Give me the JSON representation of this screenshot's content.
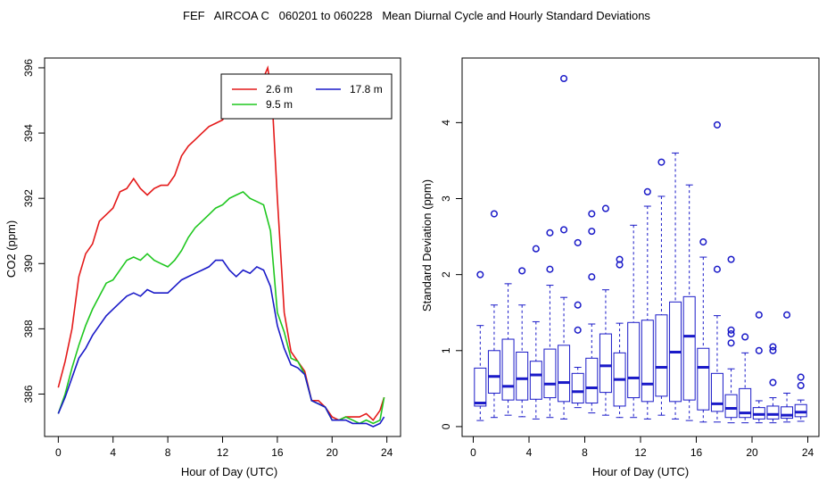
{
  "title": "FEF   AIRCOA C   060201 to 060228   Mean Diurnal Cycle and Hourly Standard Deviations",
  "chart_data": [
    {
      "type": "line",
      "xlabel": "Hour of Day (UTC)",
      "ylabel": "CO2 (ppm)",
      "xlim": [
        -1,
        25
      ],
      "ylim": [
        384.7,
        396.3
      ],
      "xticks": [
        "0",
        "4",
        "8",
        "12",
        "16",
        "20",
        "24"
      ],
      "yticks": [
        "386",
        "388",
        "390",
        "392",
        "394",
        "396"
      ],
      "legend": "top-right",
      "legend_entries": [
        "2.6 m",
        "9.5 m",
        "17.8 m"
      ],
      "series": [
        {
          "name": "2.6 m",
          "color": "#e41a1a",
          "points": [
            [
              0,
              386.2
            ],
            [
              0.5,
              387.0
            ],
            [
              1,
              388.0
            ],
            [
              1.5,
              389.6
            ],
            [
              2,
              390.3
            ],
            [
              2.5,
              390.6
            ],
            [
              3,
              391.3
            ],
            [
              3.5,
              391.5
            ],
            [
              4,
              391.7
            ],
            [
              4.5,
              392.2
            ],
            [
              5,
              392.3
            ],
            [
              5.5,
              392.6
            ],
            [
              6,
              392.3
            ],
            [
              6.5,
              392.1
            ],
            [
              7,
              392.3
            ],
            [
              7.5,
              392.4
            ],
            [
              8,
              392.4
            ],
            [
              8.5,
              392.7
            ],
            [
              9,
              393.3
            ],
            [
              9.5,
              393.6
            ],
            [
              10,
              393.8
            ],
            [
              10.5,
              394.0
            ],
            [
              11,
              394.2
            ],
            [
              11.5,
              394.3
            ],
            [
              12,
              394.4
            ],
            [
              12.5,
              394.8
            ],
            [
              13,
              395.3
            ],
            [
              13.5,
              395.3
            ],
            [
              14,
              395.5
            ],
            [
              14.5,
              395.6
            ],
            [
              15,
              395.7
            ],
            [
              15.3,
              396.0
            ],
            [
              15.6,
              395.2
            ],
            [
              16,
              392.0
            ],
            [
              16.5,
              388.5
            ],
            [
              17,
              387.3
            ],
            [
              17.5,
              387.0
            ],
            [
              18,
              386.7
            ],
            [
              18.5,
              385.8
            ],
            [
              19,
              385.8
            ],
            [
              19.5,
              385.6
            ],
            [
              20,
              385.3
            ],
            [
              20.5,
              385.2
            ],
            [
              21,
              385.3
            ],
            [
              21.5,
              385.3
            ],
            [
              22,
              385.3
            ],
            [
              22.5,
              385.4
            ],
            [
              23,
              385.2
            ],
            [
              23.5,
              385.5
            ],
            [
              23.8,
              385.9
            ]
          ]
        },
        {
          "name": "9.5 m",
          "color": "#1fc71f",
          "points": [
            [
              0,
              385.4
            ],
            [
              0.5,
              386.0
            ],
            [
              1,
              386.8
            ],
            [
              1.5,
              387.5
            ],
            [
              2,
              388.1
            ],
            [
              2.5,
              388.6
            ],
            [
              3,
              389.0
            ],
            [
              3.5,
              389.4
            ],
            [
              4,
              389.5
            ],
            [
              4.5,
              389.8
            ],
            [
              5,
              390.1
            ],
            [
              5.5,
              390.2
            ],
            [
              6,
              390.1
            ],
            [
              6.5,
              390.3
            ],
            [
              7,
              390.1
            ],
            [
              7.5,
              390.0
            ],
            [
              8,
              389.9
            ],
            [
              8.5,
              390.1
            ],
            [
              9,
              390.4
            ],
            [
              9.5,
              390.8
            ],
            [
              10,
              391.1
            ],
            [
              10.5,
              391.3
            ],
            [
              11,
              391.5
            ],
            [
              11.5,
              391.7
            ],
            [
              12,
              391.8
            ],
            [
              12.5,
              392.0
            ],
            [
              13,
              392.1
            ],
            [
              13.5,
              392.2
            ],
            [
              14,
              392.0
            ],
            [
              14.5,
              391.9
            ],
            [
              15,
              391.8
            ],
            [
              15.5,
              391.0
            ],
            [
              16,
              388.5
            ],
            [
              16.5,
              387.9
            ],
            [
              17,
              387.1
            ],
            [
              17.5,
              387.0
            ],
            [
              18,
              386.6
            ],
            [
              18.5,
              385.8
            ],
            [
              19,
              385.7
            ],
            [
              19.5,
              385.6
            ],
            [
              20,
              385.2
            ],
            [
              20.5,
              385.2
            ],
            [
              21,
              385.3
            ],
            [
              21.5,
              385.2
            ],
            [
              22,
              385.1
            ],
            [
              22.5,
              385.2
            ],
            [
              23,
              385.1
            ],
            [
              23.5,
              385.2
            ],
            [
              23.8,
              385.9
            ]
          ]
        },
        {
          "name": "17.8 m",
          "color": "#1a1ac8",
          "points": [
            [
              0,
              385.4
            ],
            [
              0.5,
              385.9
            ],
            [
              1,
              386.5
            ],
            [
              1.5,
              387.1
            ],
            [
              2,
              387.4
            ],
            [
              2.5,
              387.8
            ],
            [
              3,
              388.1
            ],
            [
              3.5,
              388.4
            ],
            [
              4,
              388.6
            ],
            [
              4.5,
              388.8
            ],
            [
              5,
              389.0
            ],
            [
              5.5,
              389.1
            ],
            [
              6,
              389.0
            ],
            [
              6.5,
              389.2
            ],
            [
              7,
              389.1
            ],
            [
              7.5,
              389.1
            ],
            [
              8,
              389.1
            ],
            [
              8.5,
              389.3
            ],
            [
              9,
              389.5
            ],
            [
              9.5,
              389.6
            ],
            [
              10,
              389.7
            ],
            [
              10.5,
              389.8
            ],
            [
              11,
              389.9
            ],
            [
              11.5,
              390.1
            ],
            [
              12,
              390.1
            ],
            [
              12.5,
              389.8
            ],
            [
              13,
              389.6
            ],
            [
              13.5,
              389.8
            ],
            [
              14,
              389.7
            ],
            [
              14.5,
              389.9
            ],
            [
              15,
              389.8
            ],
            [
              15.5,
              389.3
            ],
            [
              16,
              388.1
            ],
            [
              16.5,
              387.4
            ],
            [
              17,
              386.9
            ],
            [
              17.5,
              386.8
            ],
            [
              18,
              386.6
            ],
            [
              18.5,
              385.8
            ],
            [
              19,
              385.7
            ],
            [
              19.5,
              385.6
            ],
            [
              20,
              385.2
            ],
            [
              20.5,
              385.2
            ],
            [
              21,
              385.2
            ],
            [
              21.5,
              385.1
            ],
            [
              22,
              385.1
            ],
            [
              22.5,
              385.1
            ],
            [
              23,
              385.0
            ],
            [
              23.5,
              385.1
            ],
            [
              23.8,
              385.3
            ]
          ]
        }
      ]
    },
    {
      "type": "box",
      "xlabel": "Hour of Day (UTC)",
      "ylabel": "Standard Deviation (ppm)",
      "xlim": [
        -0.8,
        24.8
      ],
      "ylim": [
        -0.13,
        4.85
      ],
      "xticks": [
        "0",
        "4",
        "8",
        "12",
        "16",
        "20",
        "24"
      ],
      "yticks": [
        "0",
        "1",
        "2",
        "3",
        "4"
      ],
      "color": "#1a1ac8",
      "boxes": [
        {
          "x": 0.5,
          "wlo": 0.08,
          "q1": 0.27,
          "med": 0.31,
          "q3": 0.77,
          "whi": 1.33,
          "out": [
            2.0
          ]
        },
        {
          "x": 1.5,
          "wlo": 0.12,
          "q1": 0.44,
          "med": 0.66,
          "q3": 1.0,
          "whi": 1.6,
          "out": [
            2.8
          ]
        },
        {
          "x": 2.5,
          "wlo": 0.15,
          "q1": 0.35,
          "med": 0.53,
          "q3": 1.15,
          "whi": 1.88,
          "out": []
        },
        {
          "x": 3.5,
          "wlo": 0.13,
          "q1": 0.35,
          "med": 0.63,
          "q3": 0.98,
          "whi": 1.6,
          "out": [
            2.05
          ]
        },
        {
          "x": 4.5,
          "wlo": 0.1,
          "q1": 0.36,
          "med": 0.68,
          "q3": 0.86,
          "whi": 1.38,
          "out": [
            2.34
          ]
        },
        {
          "x": 5.5,
          "wlo": 0.12,
          "q1": 0.38,
          "med": 0.56,
          "q3": 1.02,
          "whi": 1.86,
          "out": [
            2.07,
            2.55
          ]
        },
        {
          "x": 6.5,
          "wlo": 0.1,
          "q1": 0.33,
          "med": 0.58,
          "q3": 1.07,
          "whi": 1.7,
          "out": [
            2.59,
            4.58
          ]
        },
        {
          "x": 7.5,
          "wlo": 0.25,
          "q1": 0.31,
          "med": 0.46,
          "q3": 0.7,
          "whi": 0.78,
          "out": [
            1.27,
            1.6,
            2.42
          ]
        },
        {
          "x": 8.5,
          "wlo": 0.18,
          "q1": 0.31,
          "med": 0.51,
          "q3": 0.9,
          "whi": 1.35,
          "out": [
            1.97,
            2.57,
            2.8
          ]
        },
        {
          "x": 9.5,
          "wlo": 0.15,
          "q1": 0.45,
          "med": 0.8,
          "q3": 1.22,
          "whi": 1.8,
          "out": [
            2.87
          ]
        },
        {
          "x": 10.5,
          "wlo": 0.12,
          "q1": 0.27,
          "med": 0.62,
          "q3": 0.97,
          "whi": 1.36,
          "out": [
            2.13,
            2.2
          ]
        },
        {
          "x": 11.5,
          "wlo": 0.12,
          "q1": 0.38,
          "med": 0.64,
          "q3": 1.37,
          "whi": 2.65,
          "out": []
        },
        {
          "x": 12.5,
          "wlo": 0.1,
          "q1": 0.33,
          "med": 0.56,
          "q3": 1.4,
          "whi": 2.9,
          "out": [
            3.09
          ]
        },
        {
          "x": 13.5,
          "wlo": 0.15,
          "q1": 0.4,
          "med": 0.78,
          "q3": 1.47,
          "whi": 3.03,
          "out": [
            3.48
          ]
        },
        {
          "x": 14.5,
          "wlo": 0.1,
          "q1": 0.33,
          "med": 0.98,
          "q3": 1.64,
          "whi": 3.6,
          "out": []
        },
        {
          "x": 15.5,
          "wlo": 0.08,
          "q1": 0.35,
          "med": 1.19,
          "q3": 1.71,
          "whi": 3.18,
          "out": []
        },
        {
          "x": 16.5,
          "wlo": 0.06,
          "q1": 0.22,
          "med": 0.78,
          "q3": 1.03,
          "whi": 2.23,
          "out": [
            2.43
          ]
        },
        {
          "x": 17.5,
          "wlo": 0.06,
          "q1": 0.2,
          "med": 0.3,
          "q3": 0.7,
          "whi": 1.46,
          "out": [
            2.07,
            3.97
          ]
        },
        {
          "x": 18.5,
          "wlo": 0.05,
          "q1": 0.12,
          "med": 0.24,
          "q3": 0.42,
          "whi": 0.76,
          "out": [
            1.1,
            1.22,
            1.27,
            2.2
          ]
        },
        {
          "x": 19.5,
          "wlo": 0.05,
          "q1": 0.12,
          "med": 0.18,
          "q3": 0.5,
          "whi": 0.97,
          "out": [
            1.18
          ]
        },
        {
          "x": 20.5,
          "wlo": 0.05,
          "q1": 0.1,
          "med": 0.16,
          "q3": 0.25,
          "whi": 0.34,
          "out": [
            1.0,
            1.47
          ]
        },
        {
          "x": 21.5,
          "wlo": 0.05,
          "q1": 0.1,
          "med": 0.16,
          "q3": 0.27,
          "whi": 0.38,
          "out": [
            0.58,
            1.0,
            1.05
          ]
        },
        {
          "x": 22.5,
          "wlo": 0.06,
          "q1": 0.11,
          "med": 0.15,
          "q3": 0.26,
          "whi": 0.44,
          "out": [
            1.47
          ]
        },
        {
          "x": 23.5,
          "wlo": 0.07,
          "q1": 0.13,
          "med": 0.19,
          "q3": 0.29,
          "whi": 0.35,
          "out": [
            0.54,
            0.65
          ]
        }
      ]
    }
  ]
}
